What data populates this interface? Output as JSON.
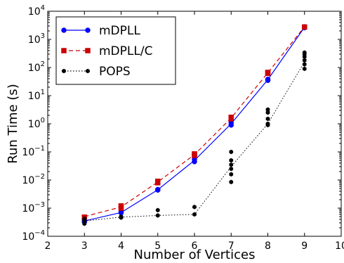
{
  "chart_data": {
    "type": "line",
    "title": "",
    "xlabel": "Number of Vertices",
    "ylabel": "Run Time (s)",
    "xlim": [
      2,
      10
    ],
    "ylim": [
      0.0001,
      10000
    ],
    "yscale": "log",
    "grid": false,
    "legend_position": "top-left",
    "x_ticks": [
      "2",
      "3",
      "4",
      "5",
      "6",
      "7",
      "8",
      "9",
      "10"
    ],
    "y_ticks": [
      {
        "exp": -4
      },
      {
        "exp": -3
      },
      {
        "exp": -2
      },
      {
        "exp": -1
      },
      {
        "exp": 0
      },
      {
        "exp": 1
      },
      {
        "exp": 2
      },
      {
        "exp": 3
      },
      {
        "exp": 4
      }
    ],
    "series": [
      {
        "name": "mDPLL",
        "color": "#0000ff",
        "line_style": "solid",
        "marker": "circle",
        "line_x": [
          3,
          4,
          5,
          6,
          7,
          8,
          9
        ],
        "line_y": [
          0.00035,
          0.0007,
          0.0045,
          0.05,
          1.0,
          37,
          2700
        ],
        "points": [
          [
            3,
            0.00032
          ],
          [
            3,
            0.00036
          ],
          [
            4,
            0.00068
          ],
          [
            4,
            0.00072
          ],
          [
            5,
            0.0044
          ],
          [
            5,
            0.0046
          ],
          [
            6,
            0.045
          ],
          [
            6,
            0.055
          ],
          [
            7,
            0.9
          ],
          [
            7,
            1.1
          ],
          [
            8,
            35
          ],
          [
            8,
            38
          ],
          [
            9,
            2600
          ],
          [
            9,
            2800
          ]
        ]
      },
      {
        "name": "mDPLL/C",
        "color": "#cc0000",
        "line_style": "dashed",
        "marker": "square",
        "line_x": [
          3,
          4,
          5,
          6,
          7,
          8,
          9
        ],
        "line_y": [
          0.0005,
          0.0011,
          0.0085,
          0.08,
          1.6,
          65,
          2800
        ],
        "points": [
          [
            3,
            0.00048
          ],
          [
            4,
            0.001
          ],
          [
            4,
            0.0012
          ],
          [
            5,
            0.008
          ],
          [
            5,
            0.009
          ],
          [
            6,
            0.075
          ],
          [
            6,
            0.085
          ],
          [
            7,
            1.5
          ],
          [
            7,
            1.7
          ],
          [
            8,
            62
          ],
          [
            8,
            67
          ],
          [
            9,
            2750
          ]
        ]
      },
      {
        "name": "POPS",
        "color": "#000000",
        "line_style": "dotted",
        "marker": "hexagon",
        "line_x": [
          3,
          4,
          5,
          6,
          7,
          8,
          9
        ],
        "line_y": [
          0.00035,
          0.00048,
          0.00055,
          0.0006,
          0.03,
          1.0,
          160
        ],
        "points": [
          [
            3,
            0.00028
          ],
          [
            3,
            0.00034
          ],
          [
            3,
            0.00038
          ],
          [
            3,
            0.00042
          ],
          [
            4,
            0.00046
          ],
          [
            4,
            0.0005
          ],
          [
            5,
            0.00055
          ],
          [
            5,
            0.00085
          ],
          [
            6,
            0.0006
          ],
          [
            6,
            0.0011
          ],
          [
            7,
            0.0085
          ],
          [
            7,
            0.016
          ],
          [
            7,
            0.025
          ],
          [
            7,
            0.035
          ],
          [
            7,
            0.05
          ],
          [
            7,
            0.1
          ],
          [
            8,
            0.9
          ],
          [
            8,
            1.0
          ],
          [
            8,
            1.5
          ],
          [
            8,
            2.5
          ],
          [
            8,
            3.2
          ],
          [
            9,
            90
          ],
          [
            9,
            130
          ],
          [
            9,
            180
          ],
          [
            9,
            240
          ],
          [
            9,
            300
          ],
          [
            9,
            340
          ]
        ]
      }
    ]
  }
}
